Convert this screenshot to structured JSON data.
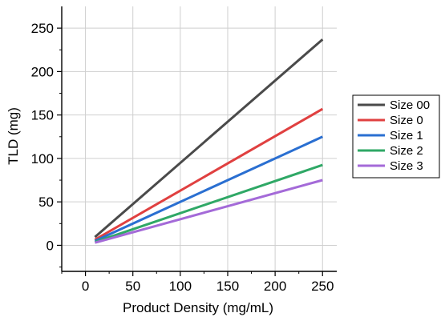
{
  "chart_data": {
    "type": "line",
    "title": "",
    "xlabel": "Product Density (mg/mL)",
    "ylabel": "TLD (mg)",
    "xlim": [
      -25,
      265
    ],
    "ylim": [
      -30,
      275
    ],
    "xticks": [
      0,
      50,
      100,
      150,
      200,
      250
    ],
    "yticks": [
      0,
      50,
      100,
      150,
      200,
      250
    ],
    "grid": true,
    "legend": "right",
    "series": [
      {
        "name": "Size 00",
        "color": "#4a4a4a",
        "x": [
          10,
          250
        ],
        "y": [
          9.5,
          237
        ]
      },
      {
        "name": "Size 0",
        "color": "#e04040",
        "x": [
          10,
          250
        ],
        "y": [
          6.5,
          157
        ]
      },
      {
        "name": "Size 1",
        "color": "#2a6fd1",
        "x": [
          10,
          250
        ],
        "y": [
          5,
          125
        ]
      },
      {
        "name": "Size 2",
        "color": "#2fa866",
        "x": [
          10,
          250
        ],
        "y": [
          3.7,
          92.5
        ]
      },
      {
        "name": "Size 3",
        "color": "#a46ad8",
        "x": [
          10,
          250
        ],
        "y": [
          3,
          75
        ]
      }
    ]
  }
}
